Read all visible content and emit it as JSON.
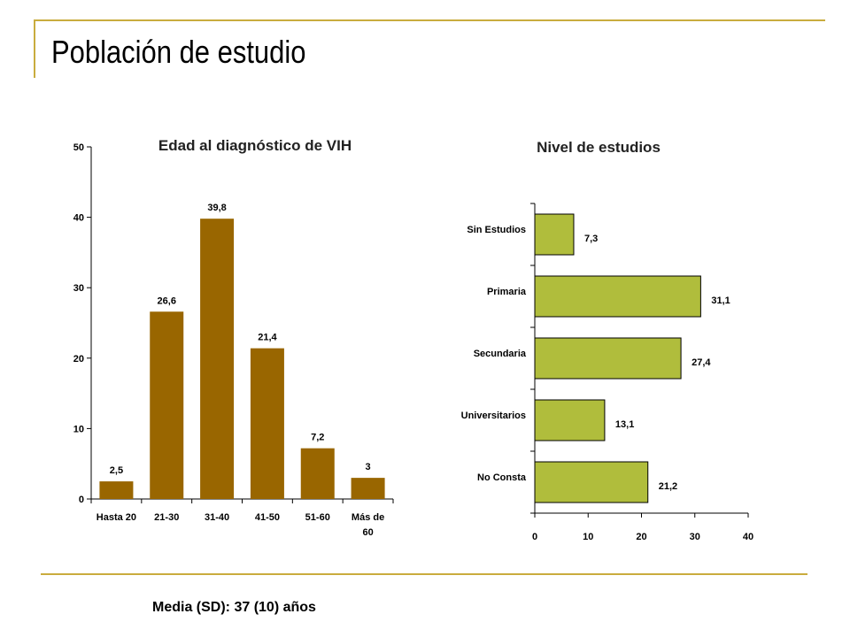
{
  "slide": {
    "title": "Población de estudio",
    "footnote": "Media (SD): 37 (10) años"
  },
  "colors": {
    "rule": "#c9ac3e",
    "age_bar": "#996600",
    "education_bar": "#b0bd3c"
  },
  "chart_data": [
    {
      "type": "bar",
      "orientation": "vertical",
      "title": "Edad al diagnóstico de VIH",
      "categories": [
        "Hasta 20",
        "21-30",
        "31-40",
        "41-50",
        "51-60",
        "Más de 60"
      ],
      "values": [
        2.5,
        26.6,
        39.8,
        21.4,
        7.2,
        3
      ],
      "value_labels": [
        "2,5",
        "26,6",
        "39,8",
        "21,4",
        "7,2",
        "3"
      ],
      "ylim": [
        0,
        50
      ],
      "yticks": [
        0,
        10,
        20,
        30,
        40,
        50
      ],
      "grid": false,
      "legend": "none"
    },
    {
      "type": "bar",
      "orientation": "horizontal",
      "title": "Nivel de estudios",
      "categories": [
        "Sin Estudios",
        "Primaria",
        "Secundaria",
        "Universitarios",
        "No Consta"
      ],
      "values": [
        7.3,
        31.1,
        27.4,
        13.1,
        21.2
      ],
      "value_labels": [
        "7,3",
        "31,1",
        "27,4",
        "13,1",
        "21,2"
      ],
      "xlim": [
        0,
        40
      ],
      "xticks": [
        0,
        10,
        20,
        30,
        40
      ],
      "grid": false,
      "legend": "none"
    }
  ]
}
